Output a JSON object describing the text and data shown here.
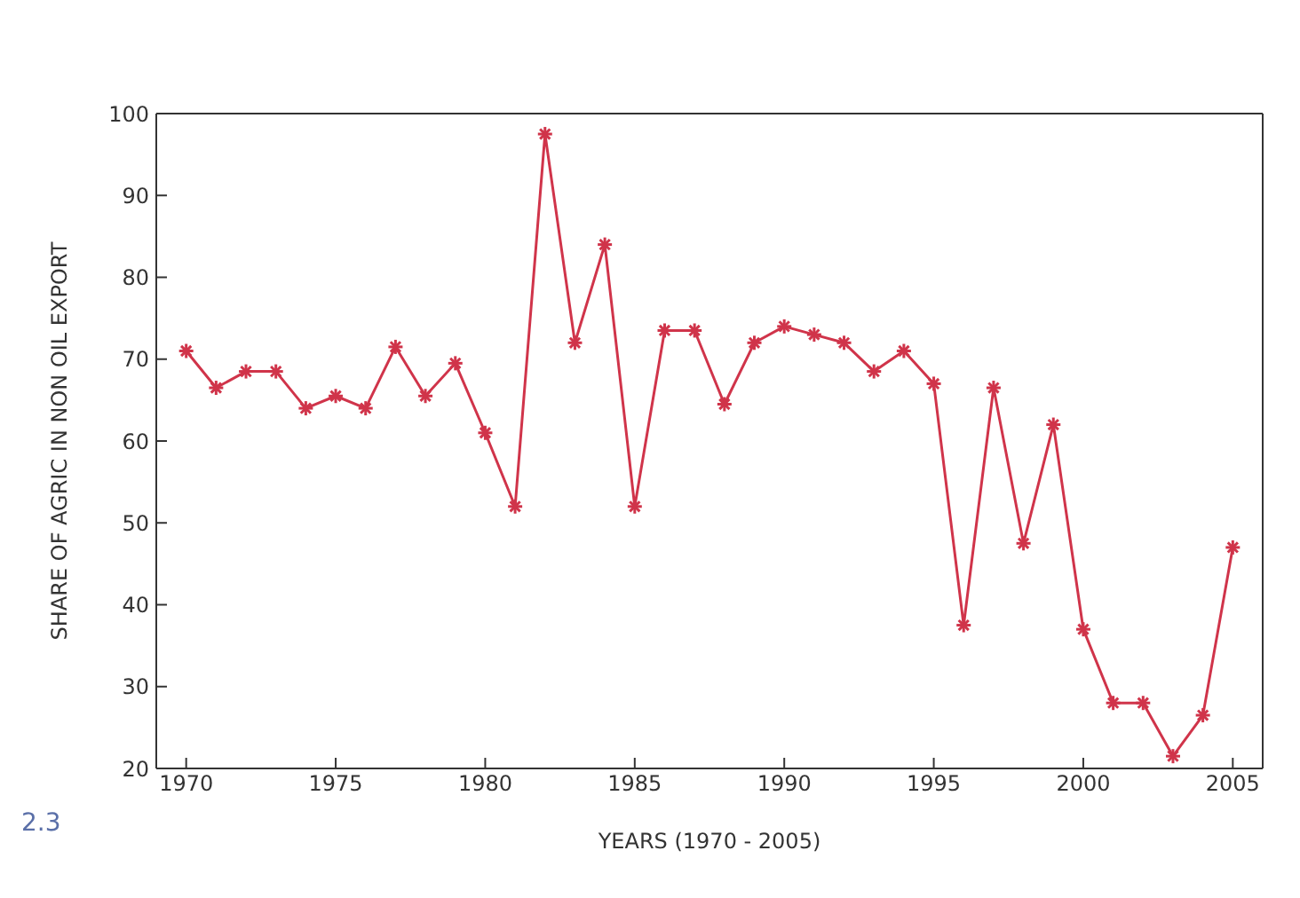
{
  "chart_data": {
    "type": "line",
    "xlabel": "YEARS (1970 - 2005)",
    "ylabel": "SHARE OF AGRIC IN NON OIL EXPORT",
    "x": [
      1970,
      1971,
      1972,
      1973,
      1974,
      1975,
      1976,
      1977,
      1978,
      1979,
      1980,
      1981,
      1982,
      1983,
      1984,
      1985,
      1986,
      1987,
      1988,
      1989,
      1990,
      1991,
      1992,
      1993,
      1994,
      1995,
      1996,
      1997,
      1998,
      1999,
      2000,
      2001,
      2002,
      2003,
      2004,
      2005
    ],
    "series": [
      {
        "color": "#d0344a",
        "values": [
          71,
          66.5,
          68.5,
          68.5,
          64,
          65.5,
          64,
          71.5,
          65.5,
          69.5,
          61,
          52,
          97.5,
          72,
          84,
          52,
          73.5,
          73.5,
          64.5,
          72,
          74,
          73,
          72,
          68.5,
          71,
          67,
          37.5,
          66.5,
          47.5,
          62,
          37,
          28,
          28,
          21.5,
          26.5,
          47
        ]
      }
    ],
    "xlim": [
      1969,
      2006
    ],
    "xticks": [
      1970,
      1975,
      1980,
      1985,
      1990,
      1995,
      2000,
      2005
    ],
    "ylim": [
      20,
      100
    ],
    "yticks": [
      20,
      30,
      40,
      50,
      60,
      70,
      80,
      90,
      100
    ],
    "marker": "cross",
    "line_style": "solid",
    "grid": false,
    "annotations": [
      "2.3"
    ]
  }
}
